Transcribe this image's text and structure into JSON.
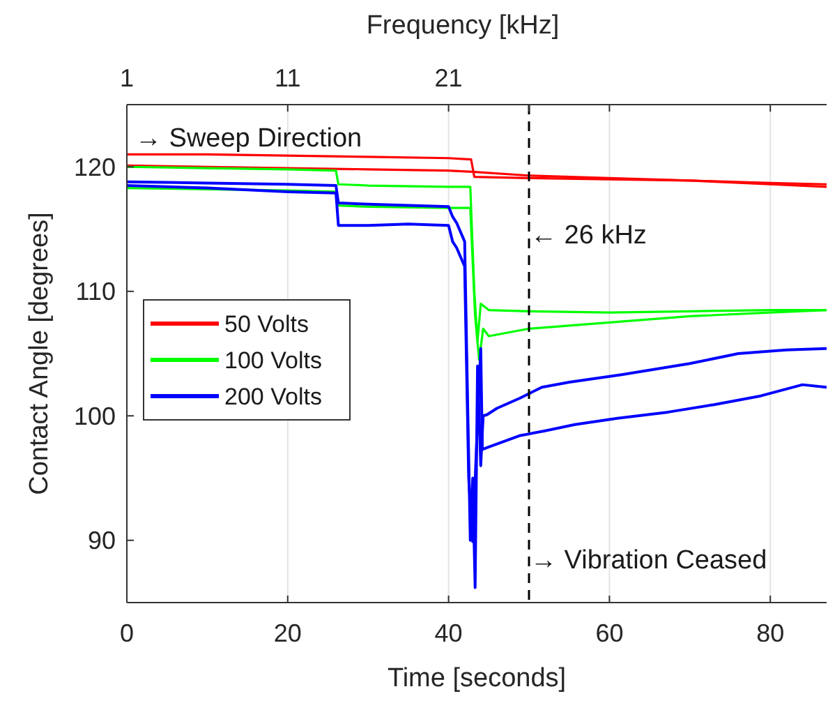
{
  "chart_data": {
    "type": "line",
    "xlabel": "Time [seconds]",
    "ylabel": "Contact Angle [degrees]",
    "x2label": "Frequency [kHz]",
    "xlim": [
      0,
      87
    ],
    "xticks": [
      0,
      20,
      40,
      60,
      80
    ],
    "ylim": [
      85,
      125
    ],
    "yticks": [
      90,
      100,
      110,
      120
    ],
    "x2lim": [
      1,
      44.5
    ],
    "x2ticks": [
      1,
      11,
      21,
      {
        "value": 26,
        "label": null
      },
      {
        "value": 31,
        "label": null
      },
      {
        "value": 41,
        "label": null
      }
    ],
    "grid": "x",
    "legend": "left",
    "line_style": "solid",
    "ref_lines": [
      {
        "axis": "x",
        "value": 50,
        "color": "#000000",
        "line_style": "dashed"
      }
    ],
    "annotations": [
      "→ Sweep Direction",
      {
        "text": "← 26 kHz",
        "x": 50,
        "y": 114.6
      },
      {
        "text": "→ Vibration Ceased",
        "x": 50,
        "y": 88.5
      }
    ],
    "series": [
      {
        "name": "50 Volts",
        "color": "#ff0000",
        "x": [
          0,
          10,
          20,
          30,
          40,
          42.8,
          43.2,
          50,
          60,
          70,
          80,
          87
        ],
        "values": [
          121.0,
          121.0,
          120.9,
          120.8,
          120.7,
          120.6,
          119.2,
          119.1,
          119.0,
          118.9,
          118.7,
          118.6
        ]
      },
      {
        "color": "#ff0000",
        "x": [
          0,
          10,
          20,
          30,
          40,
          43,
          50,
          60,
          70,
          80,
          87
        ],
        "values": [
          120.1,
          120.0,
          119.9,
          119.8,
          119.7,
          119.6,
          119.3,
          119.1,
          118.9,
          118.6,
          118.4
        ]
      },
      {
        "name": "100 Volts",
        "color": "#00ff00",
        "x": [
          0,
          10,
          20,
          26,
          26.3,
          30,
          40,
          42.7,
          43.2,
          43.6,
          44,
          45,
          50,
          60,
          70,
          80,
          87
        ],
        "values": [
          120.0,
          119.9,
          119.8,
          119.7,
          118.6,
          118.5,
          118.4,
          118.4,
          110,
          106,
          109,
          108.5,
          108.4,
          108.3,
          108.4,
          108.5,
          108.5
        ]
      },
      {
        "color": "#00ff00",
        "x": [
          0,
          10,
          20,
          26,
          26.3,
          30,
          40,
          42.7,
          43.3,
          43.8,
          44.3,
          45,
          50,
          60,
          70,
          80,
          87
        ],
        "values": [
          118.3,
          118.2,
          118.1,
          118.0,
          116.9,
          116.8,
          116.7,
          116.7,
          108,
          104.5,
          107,
          106.4,
          107.0,
          107.5,
          108.0,
          108.3,
          108.5
        ]
      },
      {
        "name": "200 Volts",
        "color": "#0000ff",
        "x": [
          0,
          10,
          20,
          26,
          26.3,
          30,
          35,
          40,
          40.5,
          41,
          42,
          42.4,
          42.7,
          43,
          43.3,
          43.6,
          44,
          44.3,
          44.8,
          46,
          48.8,
          51.6,
          55,
          61.5,
          70,
          76,
          82,
          87
        ],
        "values": [
          118.8,
          118.7,
          118.6,
          118.5,
          117.1,
          117.0,
          116.9,
          116.8,
          116.0,
          115.5,
          114,
          100,
          90,
          95,
          86.2,
          104,
          96,
          100,
          100.1,
          100.6,
          101.4,
          102.3,
          102.7,
          103.3,
          104.2,
          105.0,
          105.3,
          105.4
        ]
      },
      {
        "color": "#0000ff",
        "x": [
          0,
          10,
          20,
          26,
          26.3,
          30,
          35,
          40,
          40.5,
          41,
          42,
          42.5,
          43,
          43.5,
          44,
          44.2,
          45,
          48.8,
          52,
          55.7,
          61,
          67.3,
          73,
          78.8,
          84,
          87
        ],
        "values": [
          118.5,
          118.3,
          118.0,
          117.9,
          115.3,
          115.3,
          115.4,
          115.3,
          114.0,
          113.5,
          112,
          95,
          89.9,
          98,
          105.4,
          97.3,
          97.5,
          98.4,
          98.8,
          99.3,
          99.8,
          100.3,
          100.9,
          101.6,
          102.5,
          102.3
        ]
      }
    ]
  }
}
